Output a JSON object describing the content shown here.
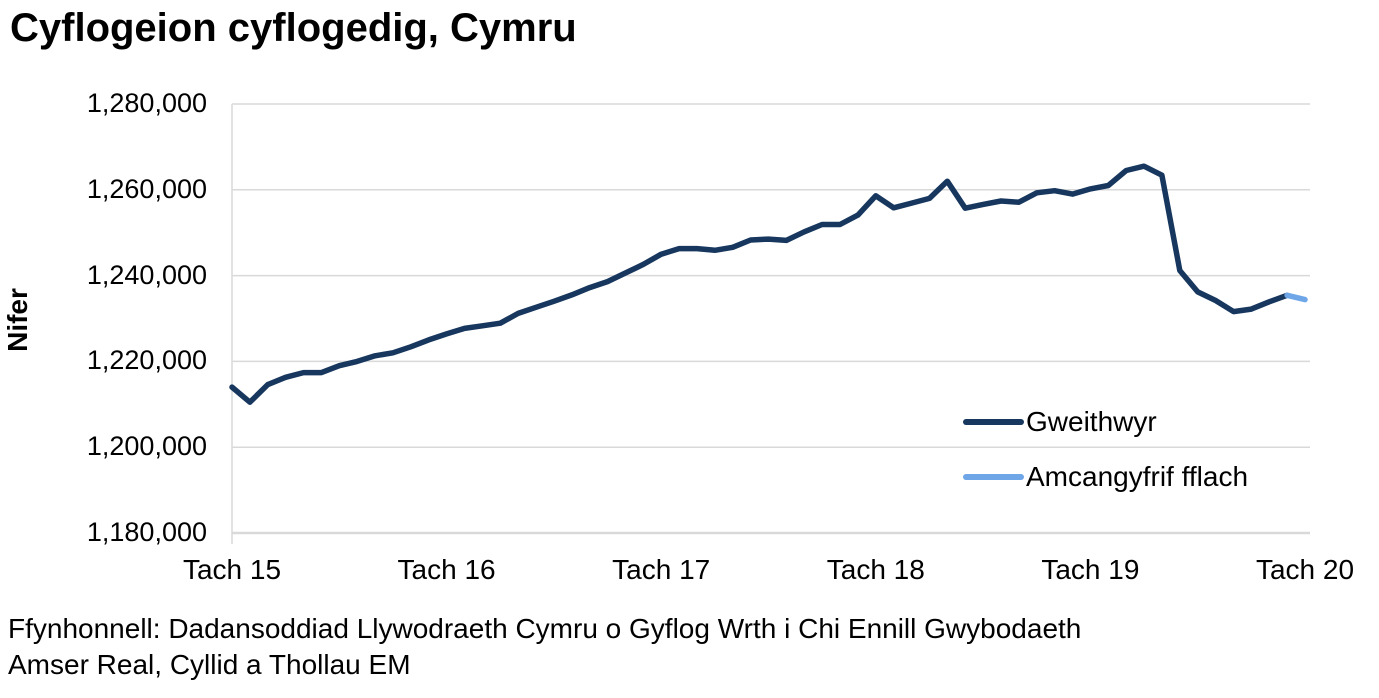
{
  "title": "Cyflogeion cyflogedig, Cymru",
  "source": {
    "line1": "Ffynhonnell: Dadansoddiad Llywodraeth Cymru o Gyflog Wrth i Chi Ennill Gwybodaeth",
    "line2": "Amser Real, Cyllid a Thollau EM"
  },
  "legend": {
    "items": [
      {
        "label": "Gweithwyr",
        "color": "#17375E"
      },
      {
        "label": "Amcangyfrif fflach",
        "color": "#6EA6E8"
      }
    ]
  },
  "colors": {
    "workers_line": "#17375E",
    "flash_line": "#6EA6E8",
    "gridline": "#D9D9D9",
    "text": "#000000"
  },
  "chart_data": {
    "type": "line",
    "title": "Cyflogeion cyflogedig, Cymru",
    "xlabel": "",
    "ylabel": "Nifer",
    "ylim": [
      1180000,
      1280000
    ],
    "ytick_step": 20000,
    "ytick_labels": [
      "1,280,000",
      "1,260,000",
      "1,240,000",
      "1,220,000",
      "1,200,000",
      "1,180,000"
    ],
    "xtick_labels": [
      "Tach 15",
      "Tach 16",
      "Tach 17",
      "Tach 18",
      "Tach 19",
      "Tach 20"
    ],
    "xtick_month_index": [
      0,
      12,
      24,
      36,
      48,
      60
    ],
    "grid": "horizontal",
    "legend_position": "inside-right",
    "x_months": [
      "Tach 15",
      "Rhag 15",
      "Ion 16",
      "Chwe 16",
      "Maw 16",
      "Ebr 16",
      "Mai 16",
      "Meh 16",
      "Gor 16",
      "Awst 16",
      "Medi 16",
      "Hyd 16",
      "Tach 16",
      "Rhag 16",
      "Ion 17",
      "Chwe 17",
      "Maw 17",
      "Ebr 17",
      "Mai 17",
      "Meh 17",
      "Gor 17",
      "Awst 17",
      "Medi 17",
      "Hyd 17",
      "Tach 17",
      "Rhag 17",
      "Ion 18",
      "Chwe 18",
      "Maw 18",
      "Ebr 18",
      "Mai 18",
      "Meh 18",
      "Gor 18",
      "Awst 18",
      "Medi 18",
      "Hyd 18",
      "Tach 18",
      "Rhag 18",
      "Ion 19",
      "Chwe 19",
      "Maw 19",
      "Ebr 19",
      "Mai 19",
      "Meh 19",
      "Gor 19",
      "Awst 19",
      "Medi 19",
      "Hyd 19",
      "Tach 19",
      "Rhag 19",
      "Ion 20",
      "Chwe 20",
      "Maw 20",
      "Ebr 20",
      "Mai 20",
      "Meh 20",
      "Gor 20",
      "Awst 20",
      "Medi 20",
      "Hyd 20",
      "Tach 20"
    ],
    "series": [
      {
        "name": "Gweithwyr",
        "month_start": 0,
        "values": [
          1214000,
          1210500,
          1214600,
          1216300,
          1217400,
          1217400,
          1219000,
          1220000,
          1221300,
          1222000,
          1223400,
          1225000,
          1226400,
          1227700,
          1228300,
          1228900,
          1231200,
          1232600,
          1234000,
          1235500,
          1237200,
          1238600,
          1240600,
          1242600,
          1245000,
          1246300,
          1246300,
          1245900,
          1246600,
          1248300,
          1248500,
          1248200,
          1250200,
          1251900,
          1251900,
          1254100,
          1258600,
          1255800,
          1256900,
          1258000,
          1262000,
          1255700,
          1256600,
          1257400,
          1257100,
          1259300,
          1259800,
          1259000,
          1260200,
          1261000,
          1264500,
          1265500,
          1263400,
          1241200,
          1236200,
          1234200,
          1231600,
          1232200,
          1233900,
          1235400
        ]
      },
      {
        "name": "Amcangyfrif fflach",
        "month_start": 59,
        "values": [
          1235400,
          1234400
        ]
      }
    ]
  }
}
